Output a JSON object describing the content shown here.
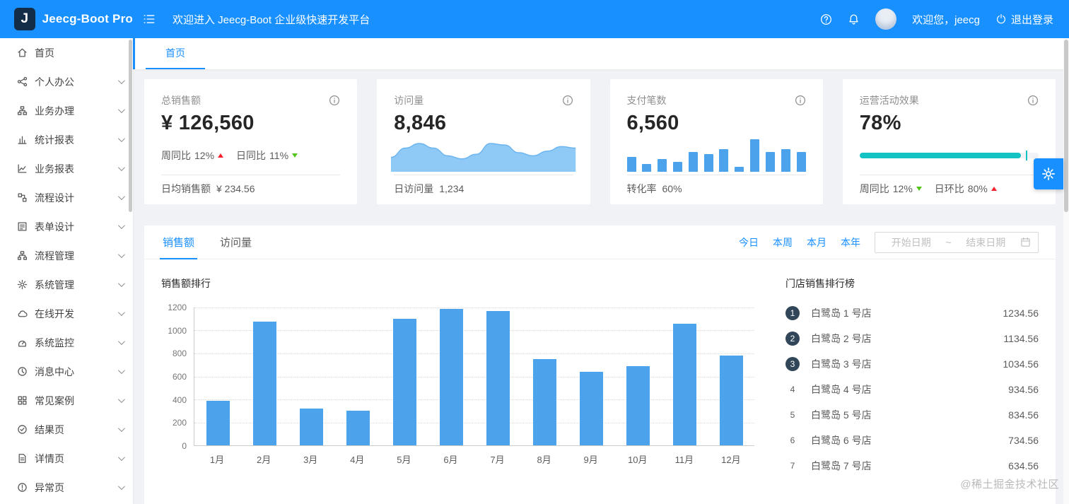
{
  "colors": {
    "accent": "#1890ff",
    "bar_blue": "#4CA3EC",
    "area_fill": "#8FC9F5",
    "area_line": "#6CB5F0",
    "teal": "#13C2C2",
    "up_red": "#f5222d",
    "down_green": "#52c41a",
    "badge_dark": "#314659"
  },
  "header": {
    "logo_letter": "J",
    "logo_text": "Jeecg-Boot Pro",
    "welcome": "欢迎进入 Jeecg-Boot 企业级快速开发平台",
    "greeting": "欢迎您，jeecg",
    "logout_label": "退出登录"
  },
  "sidebar": {
    "items": [
      {
        "id": "home",
        "icon": "home",
        "label": "首页",
        "chevron": false
      },
      {
        "id": "personal-office",
        "icon": "share",
        "label": "个人办公",
        "chevron": true
      },
      {
        "id": "business-handle",
        "icon": "cluster",
        "label": "业务办理",
        "chevron": true
      },
      {
        "id": "statistics-report",
        "icon": "bar-chart",
        "label": "统计报表",
        "chevron": true
      },
      {
        "id": "business-report",
        "icon": "line-chart",
        "label": "业务报表",
        "chevron": true
      },
      {
        "id": "process-design",
        "icon": "flow",
        "label": "流程设计",
        "chevron": true
      },
      {
        "id": "form-design",
        "icon": "form",
        "label": "表单设计",
        "chevron": true
      },
      {
        "id": "process-manage",
        "icon": "apartment",
        "label": "流程管理",
        "chevron": true
      },
      {
        "id": "system-manage",
        "icon": "setting",
        "label": "系统管理",
        "chevron": true
      },
      {
        "id": "online-dev",
        "icon": "cloud",
        "label": "在线开发",
        "chevron": true
      },
      {
        "id": "system-monitor",
        "icon": "dashboard",
        "label": "系统监控",
        "chevron": true
      },
      {
        "id": "message-center",
        "icon": "clock",
        "label": "消息中心",
        "chevron": true
      },
      {
        "id": "common-cases",
        "icon": "grid",
        "label": "常见案例",
        "chevron": true
      },
      {
        "id": "result-page",
        "icon": "check-circle",
        "label": "结果页",
        "chevron": true
      },
      {
        "id": "detail-page",
        "icon": "file",
        "label": "详情页",
        "chevron": true
      },
      {
        "id": "exception-page",
        "icon": "warning-circle",
        "label": "异常页",
        "chevron": true
      }
    ]
  },
  "tabbar": {
    "active_tab": "首页"
  },
  "stats": {
    "card1": {
      "title": "总销售额",
      "value": "¥ 126,560",
      "trend1_label": "周同比",
      "trend1_value": "12%",
      "trend2_label": "日同比",
      "trend2_value": "11%",
      "footer_label": "日均销售额",
      "footer_value": "¥ 234.56"
    },
    "card2": {
      "title": "访问量",
      "value": "8,846",
      "footer_label": "日访问量",
      "footer_value": "1,234"
    },
    "card3": {
      "title": "支付笔数",
      "value": "6,560",
      "footer_label": "转化率",
      "footer_value": "60%"
    },
    "card4": {
      "title": "运营活动效果",
      "value": "78%",
      "footer1_label": "周同比",
      "footer1_value": "12%",
      "footer2_label": "日环比",
      "footer2_value": "80%"
    }
  },
  "main_panel": {
    "tabs": [
      {
        "id": "sales",
        "label": "销售额",
        "active": true
      },
      {
        "id": "visits",
        "label": "访问量",
        "active": false
      }
    ],
    "range_links": [
      {
        "id": "today",
        "label": "今日"
      },
      {
        "id": "week",
        "label": "本周"
      },
      {
        "id": "month",
        "label": "本月"
      },
      {
        "id": "year",
        "label": "本年"
      }
    ],
    "date_start": "开始日期",
    "date_sep": "~",
    "date_end": "结束日期",
    "ranking_title": "门店销售排行榜",
    "ranking": [
      {
        "rank": "1",
        "name": "白鹭岛 1 号店",
        "value": "1234.56"
      },
      {
        "rank": "2",
        "name": "白鹭岛 2 号店",
        "value": "1134.56"
      },
      {
        "rank": "3",
        "name": "白鹭岛 3 号店",
        "value": "1034.56"
      },
      {
        "rank": "4",
        "name": "白鹭岛 4 号店",
        "value": "934.56"
      },
      {
        "rank": "5",
        "name": "白鹭岛 5 号店",
        "value": "834.56"
      },
      {
        "rank": "6",
        "name": "白鹭岛 6 号店",
        "value": "734.56"
      },
      {
        "rank": "7",
        "name": "白鹭岛 7 号店",
        "value": "634.56"
      }
    ]
  },
  "chart_data": [
    {
      "type": "bar",
      "title": "销售额排行",
      "categories": [
        "1月",
        "2月",
        "3月",
        "4月",
        "5月",
        "6月",
        "7月",
        "8月",
        "9月",
        "10月",
        "11月",
        "12月"
      ],
      "values": [
        390,
        1080,
        320,
        300,
        1100,
        1190,
        1170,
        750,
        640,
        690,
        1060,
        780
      ],
      "xlabel": "",
      "ylabel": "",
      "ylim": [
        0,
        1200
      ],
      "yticks": [
        0,
        200,
        400,
        600,
        800,
        1000,
        1200
      ],
      "grid": "dotted-horizontal",
      "bar_color": "#4CA3EC",
      "legend": "none"
    },
    {
      "type": "area",
      "name": "visits-mini-trend",
      "values": [
        4,
        7,
        8.5,
        7,
        4.5,
        3.5,
        5,
        8.5,
        8,
        5.5,
        4.5,
        6,
        7.5,
        7
      ],
      "fill_color": "#8FC9F5",
      "line_color": "#6CB5F0"
    },
    {
      "type": "bar",
      "name": "payments-mini-bars",
      "values": [
        6,
        3,
        5,
        4,
        8,
        7,
        9,
        2,
        13,
        8,
        9,
        8
      ],
      "bar_color": "#4CA3EC"
    },
    {
      "type": "progress",
      "name": "activity-effect",
      "percent": 78,
      "fill": 90,
      "target": 93,
      "color": "#13C2C2"
    }
  ],
  "watermark": "@稀土掘金技术社区"
}
